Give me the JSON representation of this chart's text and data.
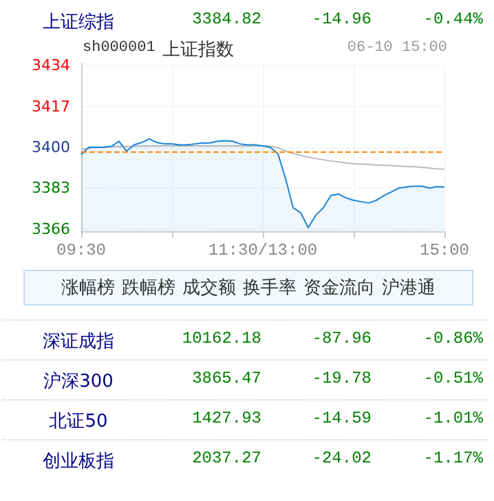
{
  "chart_data": [
    {
      "type": "other",
      "annotations": [
        "上证综指",
        "3384.82",
        "-14.96",
        "-0.44%"
      ]
    },
    {
      "type": "line",
      "title": "sh000001",
      "subtitle": "上证指数",
      "annotations": [
        "06-10 15:00"
      ],
      "categories": [
        "09:30",
        null,
        null,
        null,
        null,
        null,
        null,
        null,
        null,
        null,
        null,
        null,
        null,
        null,
        null,
        null,
        null,
        null,
        null,
        null,
        null,
        null,
        null,
        null,
        "11:30/13:00",
        null,
        null,
        null,
        null,
        null,
        null,
        null,
        null,
        null,
        null,
        null,
        null,
        null,
        null,
        null,
        null,
        null,
        null,
        null,
        null,
        null,
        null,
        null,
        "15:00"
      ],
      "series": [
        {
          "type": "area",
          "color": "#1a85d6",
          "values": [
            3396.9,
            3400,
            3400,
            3400,
            3400.4,
            3402.5,
            3398.4,
            3401,
            3402,
            3403.5,
            3402,
            3401.4,
            3401.4,
            3401,
            3401,
            3401.4,
            3401.8,
            3401.8,
            3402.5,
            3402.7,
            3402.5,
            3401.4,
            3401,
            3401,
            3400.6,
            3400,
            3397.3,
            3387,
            3374.8,
            3372.7,
            3366.5,
            3371.7,
            3374.8,
            3379.9,
            3380.5,
            3378.9,
            3377.9,
            3377.3,
            3376.8,
            3377.9,
            3379.9,
            3381.4,
            3383,
            3383.4,
            3383.8,
            3383.8,
            3383,
            3383.6,
            3383.4
          ]
        },
        {
          "type": "line",
          "color": "#bbbbbb",
          "values": [
            3399,
            3399.6,
            3400,
            3400,
            3400.2,
            3400.3,
            3400.3,
            3400.4,
            3400.5,
            3400.5,
            3400.6,
            3400.6,
            3400.6,
            3400.6,
            3400.6,
            3400.6,
            3400.6,
            3400.6,
            3400.6,
            3400.6,
            3400.6,
            3400.6,
            3400.6,
            3400.6,
            3400.6,
            3400.4,
            3399.8,
            3398.4,
            3397.5,
            3396.6,
            3395.9,
            3395.3,
            3394.8,
            3394.3,
            3393.9,
            3393.5,
            3393.2,
            3393,
            3392.8,
            3392.6,
            3392.5,
            3392.4,
            3392.2,
            3392,
            3391.9,
            3391.6,
            3391.3,
            3391,
            3390.8
          ]
        }
      ],
      "ylim": [
        3365,
        3435
      ],
      "yticks": [
        3366,
        3383,
        3400,
        3417,
        3434
      ],
      "grid": true,
      "marker": "none",
      "ref_lines": [
        {
          "axis": "y",
          "value": 3398,
          "color": "#ff8800",
          "line_style": "dashed"
        }
      ]
    },
    {
      "type": "other",
      "annotations": [
        "涨幅榜",
        "跌幅榜",
        "成交额",
        "换手率",
        "资金流向",
        "沪港通"
      ]
    },
    {
      "type": "other",
      "annotations": [
        "深证成指",
        "10162.18",
        "-87.96",
        "-0.86%",
        "沪深300",
        "3865.47",
        "-19.78",
        "-0.51%",
        "北证50",
        "1427.93",
        "-14.59",
        "-1.01%",
        "创业板指",
        "2037.27",
        "-24.02",
        "-1.17%"
      ]
    }
  ]
}
